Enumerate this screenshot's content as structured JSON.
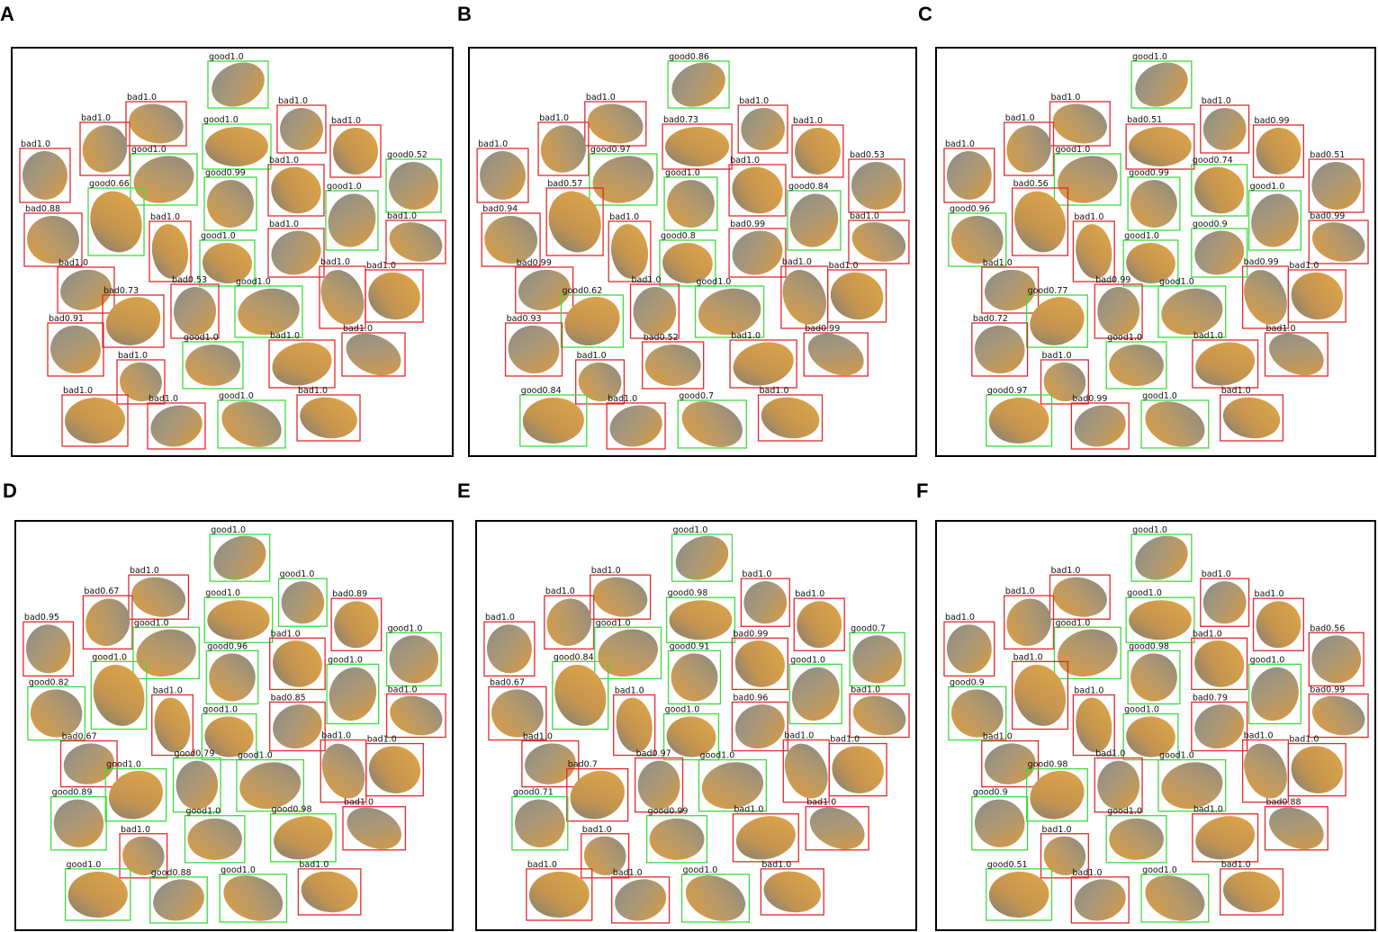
{
  "box_colors": {
    "good": "#3ddc3d",
    "bad": "#e02b2b"
  },
  "panels": [
    {
      "letter": "A",
      "labels": [
        "good1.0",
        "bad1.0",
        "good1.0",
        "bad1.0",
        "bad1.0",
        "bad1.0",
        "bad1.0",
        "good1.0",
        "bad1.0",
        "good0.52",
        "good0.99",
        "good0.66",
        "good1.0",
        "bad0.88",
        "bad1.0",
        "bad1.0",
        "bad1.0",
        "good1.0",
        "bad1.0",
        "bad1.0",
        "bad1.0",
        "bad0.53",
        "good1.0",
        "bad0.73",
        "bad0.91",
        "good1.0",
        "bad1.0",
        "bad1.0",
        "bad1.0",
        "bad1.0",
        "bad1.0",
        "good1.0",
        "bad1.0"
      ]
    },
    {
      "letter": "B",
      "labels": [
        "good0.86",
        "bad1.0",
        "bad0.73",
        "bad1.0",
        "bad1.0",
        "bad1.0",
        "bad1.0",
        "good0.97",
        "bad1.0",
        "bad0.53",
        "good1.0",
        "bad0.57",
        "good0.84",
        "bad0.94",
        "bad1.0",
        "bad0.99",
        "bad1.0",
        "good0.8",
        "bad0.99",
        "bad1.0",
        "bad1.0",
        "bad1.0",
        "good1.0",
        "good0.62",
        "bad0.93",
        "bad0.52",
        "bad1.0",
        "bad0.99",
        "bad1.0",
        "good0.84",
        "bad1.0",
        "good0.7",
        "bad1.0"
      ]
    },
    {
      "letter": "C",
      "labels": [
        "good1.0",
        "bad1.0",
        "bad0.51",
        "bad1.0",
        "bad1.0",
        "bad0.99",
        "bad1.0",
        "good1.0",
        "good0.74",
        "bad0.51",
        "good0.99",
        "bad0.56",
        "good1.0",
        "good0.96",
        "bad1.0",
        "good0.9",
        "bad0.99",
        "good1.0",
        "bad1.0",
        "bad0.99",
        "bad1.0",
        "bad0.99",
        "good1.0",
        "good0.77",
        "bad0.72",
        "good1.0",
        "bad1.0",
        "bad1.0",
        "bad1.0",
        "good0.97",
        "bad0.99",
        "good1.0",
        "bad1.0"
      ]
    },
    {
      "letter": "D",
      "labels": [
        "good1.0",
        "bad1.0",
        "good1.0",
        "good1.0",
        "bad0.67",
        "bad0.89",
        "bad0.95",
        "good1.0",
        "bad1.0",
        "good1.0",
        "good0.96",
        "good1.0",
        "good1.0",
        "good0.82",
        "bad1.0",
        "bad0.85",
        "bad1.0",
        "good1.0",
        "bad0.67",
        "bad1.0",
        "bad1.0",
        "good0.79",
        "good1.0",
        "good1.0",
        "good0.89",
        "good1.0",
        "good0.98",
        "bad1.0",
        "bad1.0",
        "good1.0",
        "good0.88",
        "good1.0",
        "bad1.0"
      ]
    },
    {
      "letter": "E",
      "labels": [
        "good1.0",
        "bad1.0",
        "good0.98",
        "bad1.0",
        "bad1.0",
        "bad1.0",
        "bad1.0",
        "good1.0",
        "bad0.99",
        "good0.7",
        "good0.91",
        "good0.84",
        "good1.0",
        "bad0.67",
        "bad1.0",
        "bad0.96",
        "bad1.0",
        "good1.0",
        "bad1.0",
        "bad1.0",
        "bad1.0",
        "bad0.97",
        "good1.0",
        "bad0.7",
        "good0.71",
        "good0.99",
        "bad1.0",
        "bad1.0",
        "bad1.0",
        "bad1.0",
        "bad1.0",
        "good1.0",
        "bad1.0"
      ]
    },
    {
      "letter": "F",
      "labels": [
        "good1.0",
        "bad1.0",
        "good1.0",
        "bad1.0",
        "bad1.0",
        "bad1.0",
        "bad1.0",
        "good1.0",
        "bad1.0",
        "bad0.56",
        "good0.98",
        "bad1.0",
        "good1.0",
        "good0.9",
        "bad1.0",
        "bad0.79",
        "bad0.99",
        "good1.0",
        "bad1.0",
        "bad1.0",
        "bad1.0",
        "bad1.0",
        "good1.0",
        "good0.98",
        "good0.9",
        "good1.0",
        "bad1.0",
        "bad0.88",
        "bad1.0",
        "good0.51",
        "bad1.0",
        "good1.0",
        "bad1.0"
      ]
    }
  ]
}
